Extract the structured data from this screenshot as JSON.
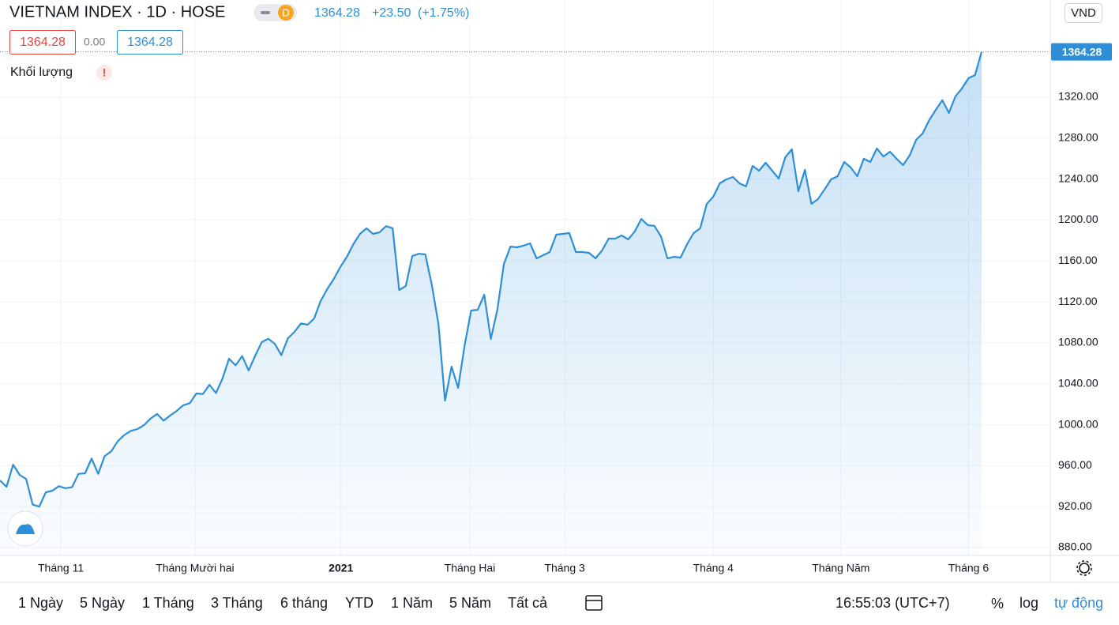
{
  "header": {
    "title": "VIETNAM INDEX · 1D · HOSE",
    "badge": "D",
    "change": "+23.50",
    "change_pct": "(+1.75%)",
    "legend_diff": "0.00",
    "volume_label": "Khối lượng",
    "volume_alert": "!",
    "currency": "VND"
  },
  "chart_data": {
    "type": "line",
    "grid": true,
    "log_scale": false,
    "fill": true,
    "ylim": [
      872.3,
      1414.9
    ],
    "xlim": [
      0,
      150
    ],
    "yticks": [
      {
        "value": 880,
        "label": "880.00"
      },
      {
        "value": 920,
        "label": "920.00"
      },
      {
        "value": 960,
        "label": "960.00"
      },
      {
        "value": 1000,
        "label": "1000.00"
      },
      {
        "value": 1040,
        "label": "1040.00"
      },
      {
        "value": 1080,
        "label": "1080.00"
      },
      {
        "value": 1120,
        "label": "1120.00"
      },
      {
        "value": 1160,
        "label": "1160.00"
      },
      {
        "value": 1200,
        "label": "1200.00"
      },
      {
        "value": 1240,
        "label": "1240.00"
      },
      {
        "value": 1280,
        "label": "1280.00"
      },
      {
        "value": 1320,
        "label": "1320.00"
      }
    ],
    "xticks": [
      {
        "value": 9.3,
        "label": "Tháng 11"
      },
      {
        "value": 29.8,
        "label": "Tháng Mười hai"
      },
      {
        "value": 52.1,
        "label": "2021"
      },
      {
        "value": 71.8,
        "label": "Tháng Hai"
      },
      {
        "value": 86.3,
        "label": "Tháng 3"
      },
      {
        "value": 109,
        "label": "Tháng 4"
      },
      {
        "value": 128.5,
        "label": "Tháng Năm"
      },
      {
        "value": 148,
        "label": "Tháng 6"
      }
    ],
    "series": [
      {
        "name": "VIETNAM INDEX",
        "color": "#2e8fd9",
        "values": [
          945.6,
          939.4,
          961,
          951,
          947,
          922,
          920,
          934,
          935.6,
          940,
          938,
          939,
          952,
          952.6,
          967,
          952,
          969.5,
          974,
          984,
          990,
          994,
          995.8,
          999.6,
          1006,
          1010.5,
          1004,
          1009,
          1013.5,
          1019,
          1021,
          1030.5,
          1030,
          1039,
          1031,
          1045,
          1064.5,
          1058,
          1067,
          1053,
          1067.6,
          1080.7,
          1084,
          1079,
          1068,
          1084.5,
          1090.7,
          1099,
          1097.7,
          1103.8,
          1120.8,
          1132.4,
          1142.4,
          1154,
          1164,
          1176.4,
          1186.4,
          1191.9,
          1186.4,
          1188,
          1194,
          1191.9,
          1131.6,
          1135.5,
          1164.8,
          1167,
          1166.4,
          1136.3,
          1098.4,
          1023.6,
          1056.8,
          1036,
          1077.6,
          1111.6,
          1112.3,
          1127,
          1083.8,
          1112.3,
          1157,
          1174,
          1173.3,
          1174.9,
          1177.2,
          1162.5,
          1165.6,
          1168.7,
          1185.7,
          1186.4,
          1187.2,
          1168.7,
          1168.7,
          1167.9,
          1162.5,
          1170.2,
          1181.8,
          1181.8,
          1184.9,
          1181,
          1188.8,
          1201,
          1194.9,
          1194.2,
          1184,
          1162.5,
          1164,
          1163.3,
          1176.4,
          1187.2,
          1191.9,
          1215.8,
          1222.7,
          1235.8,
          1239.7,
          1242,
          1235.8,
          1232.8,
          1252.8,
          1248.2,
          1255.9,
          1248.2,
          1240.5,
          1261.3,
          1269,
          1228.1,
          1249,
          1215.8,
          1220.4,
          1229.7,
          1239.7,
          1242.8,
          1256.7,
          1251.3,
          1242.8,
          1259.8,
          1256.7,
          1269.8,
          1262,
          1266.7,
          1259.8,
          1253.6,
          1262.9,
          1278.3,
          1284.5,
          1297.6,
          1307.6,
          1317,
          1304.6,
          1320.8,
          1328.5,
          1338.5,
          1341.6,
          1364.28
        ]
      }
    ]
  },
  "toolbar": {
    "ranges": [
      "1 Ngày",
      "5 Ngày",
      "1 Tháng",
      "3 Tháng",
      "6 tháng",
      "YTD",
      "1 Năm",
      "5 Năm",
      "Tất cả"
    ],
    "time": "16:55:03 (UTC+7)",
    "percent": "%",
    "log": "log",
    "auto": "tự động"
  }
}
